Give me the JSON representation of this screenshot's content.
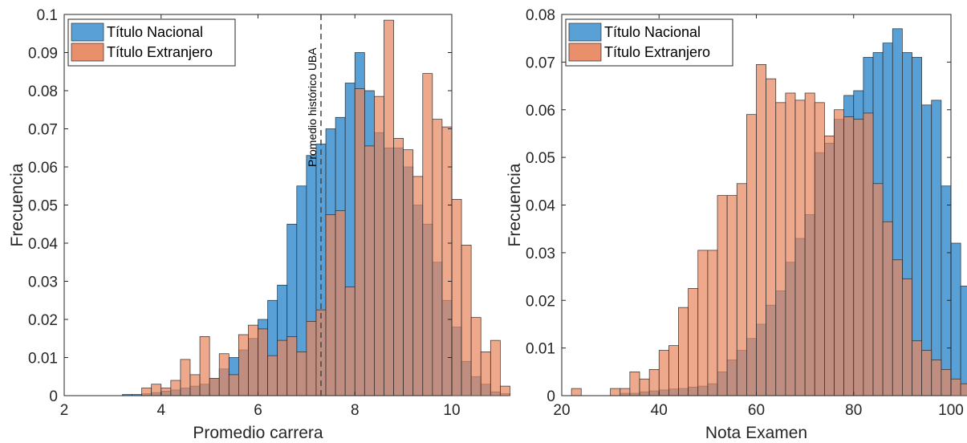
{
  "chart_data": [
    {
      "type": "bar",
      "xlabel": "Promedio carrera",
      "ylabel": "Frecuencia",
      "xlim": [
        2,
        10
      ],
      "ylim": [
        0,
        0.1
      ],
      "xticks": [
        "2",
        "4",
        "6",
        "8",
        "10"
      ],
      "yticks": [
        "0",
        "0.01",
        "0.02",
        "0.03",
        "0.04",
        "0.05",
        "0.06",
        "0.07",
        "0.08",
        "0.09",
        "0.1"
      ],
      "bin_start": 3.2,
      "bin_width": 0.2,
      "legend": "top-left",
      "annotation": {
        "text": "Promedio histórico UBA",
        "x": 7.3
      },
      "series": [
        {
          "name": "Título Nacional",
          "color": "#4a98d3",
          "values": [
            0.0003,
            0.0003,
            0.0005,
            0.0008,
            0.0012,
            0.0015,
            0.002,
            0.0025,
            0.003,
            0.0045,
            0.007,
            0.01,
            0.012,
            0.015,
            0.02,
            0.025,
            0.029,
            0.045,
            0.055,
            0.063,
            0.066,
            0.07,
            0.073,
            0.082,
            0.09,
            0.08,
            0.069,
            0.065,
            0.065,
            0.06,
            0.05,
            0.045,
            0.035,
            0.025,
            0.018,
            0.009,
            0.005,
            0.003,
            0.001,
            0.0005
          ]
        },
        {
          "name": "Título Extranjero",
          "color": "#e8865e",
          "values": [
            0,
            0,
            0.002,
            0.003,
            0.002,
            0.004,
            0.0095,
            0.0055,
            0.0155,
            0.0045,
            0.011,
            0.0055,
            0.016,
            0.0185,
            0.0175,
            0.0105,
            0.0145,
            0.0155,
            0.0115,
            0.0195,
            0.0225,
            0.0475,
            0.0485,
            0.0285,
            0.0805,
            0.0655,
            0.0785,
            0.0985,
            0.0675,
            0.0645,
            0.0575,
            0.0845,
            0.0725,
            0.0705,
            0.0515,
            0.0395,
            0.0205,
            0.0115,
            0.0145,
            0.0025
          ]
        }
      ]
    },
    {
      "type": "bar",
      "xlabel": "Nota Examen",
      "ylabel": "Frecuencia",
      "xlim": [
        20,
        100
      ],
      "ylim": [
        0,
        0.08
      ],
      "xticks": [
        "20",
        "40",
        "60",
        "80",
        "100"
      ],
      "yticks": [
        "0",
        "0.01",
        "0.02",
        "0.03",
        "0.04",
        "0.05",
        "0.06",
        "0.07",
        "0.08"
      ],
      "bin_start": 22,
      "bin_width": 2,
      "legend": "top-left",
      "series": [
        {
          "name": "Título Nacional",
          "color": "#4a98d3",
          "values": [
            0,
            0,
            0,
            0,
            0,
            0.0005,
            0.0005,
            0.0008,
            0.001,
            0.0012,
            0.0014,
            0.0015,
            0.0018,
            0.002,
            0.0025,
            0.005,
            0.0075,
            0.0095,
            0.012,
            0.015,
            0.019,
            0.022,
            0.028,
            0.033,
            0.038,
            0.051,
            0.053,
            0.058,
            0.063,
            0.064,
            0.071,
            0.072,
            0.074,
            0.077,
            0.072,
            0.071,
            0.061,
            0.062,
            0.044,
            0.032,
            0.023,
            0.016,
            0.0095,
            0.0055,
            0.0035,
            0.001
          ]
        },
        {
          "name": "Título Extranjero",
          "color": "#e8865e",
          "values": [
            0.0015,
            0,
            0,
            0,
            0.0015,
            0.0015,
            0.005,
            0.0035,
            0.0055,
            0.0095,
            0.0105,
            0.0185,
            0.0225,
            0.0305,
            0.0305,
            0.042,
            0.042,
            0.0445,
            0.059,
            0.0695,
            0.0665,
            0.0615,
            0.0635,
            0.062,
            0.0635,
            0.0615,
            0.0545,
            0.06,
            0.0585,
            0.058,
            0.0593,
            0.0445,
            0.0365,
            0.0285,
            0.0245,
            0.0115,
            0.0095,
            0.0075,
            0.0055,
            0.0035,
            0.0025,
            0.0015,
            0.0005,
            0,
            0,
            0
          ]
        }
      ]
    }
  ]
}
